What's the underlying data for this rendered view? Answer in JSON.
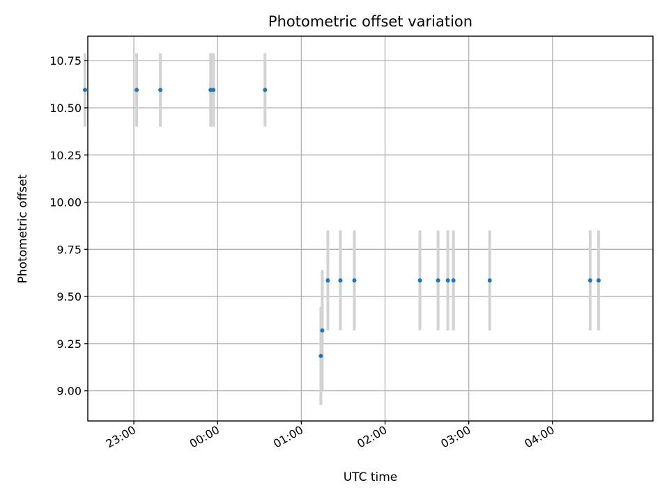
{
  "chart_data": {
    "type": "scatter",
    "title": "Photometric offset variation",
    "xlabel": "UTC time",
    "ylabel": "Photometric offset",
    "x_tick_labels": [
      "23:00",
      "00:00",
      "01:00",
      "02:00",
      "03:00",
      "04:00"
    ],
    "x_tick_times": [
      "23:00",
      "24:00",
      "25:00",
      "26:00",
      "27:00",
      "28:00"
    ],
    "xlim": [
      "22:27",
      "29:12"
    ],
    "y_tick_labels": [
      "9.00",
      "9.25",
      "9.50",
      "9.75",
      "10.00",
      "10.25",
      "10.50",
      "10.75"
    ],
    "y_tick_values": [
      9.0,
      9.25,
      9.5,
      9.75,
      10.0,
      10.25,
      10.5,
      10.75
    ],
    "ylim": [
      8.84,
      10.88
    ],
    "grid": true,
    "marker_color": "#1f77b4",
    "errorbar_color": "#d3d3d3",
    "series": [
      {
        "points": [
          {
            "t": "22:25",
            "y": 10.595,
            "err": 0.195
          },
          {
            "t": "23:02",
            "y": 10.595,
            "err": 0.195
          },
          {
            "t": "23:19",
            "y": 10.595,
            "err": 0.195
          },
          {
            "t": "23:55",
            "y": 10.595,
            "err": 0.195
          },
          {
            "t": "23:57",
            "y": 10.595,
            "err": 0.195
          },
          {
            "t": "24:34",
            "y": 10.595,
            "err": 0.195
          },
          {
            "t": "25:14",
            "y": 9.185,
            "err": 0.26
          },
          {
            "t": "25:15",
            "y": 9.32,
            "err": 0.32
          },
          {
            "t": "25:19",
            "y": 9.585,
            "err": 0.265
          },
          {
            "t": "25:28",
            "y": 9.585,
            "err": 0.265
          },
          {
            "t": "25:38",
            "y": 9.585,
            "err": 0.265
          },
          {
            "t": "26:25",
            "y": 9.585,
            "err": 0.265
          },
          {
            "t": "26:38",
            "y": 9.585,
            "err": 0.265
          },
          {
            "t": "26:45",
            "y": 9.585,
            "err": 0.265
          },
          {
            "t": "26:49",
            "y": 9.585,
            "err": 0.265
          },
          {
            "t": "27:15",
            "y": 9.585,
            "err": 0.265
          },
          {
            "t": "28:27",
            "y": 9.585,
            "err": 0.265
          },
          {
            "t": "28:33",
            "y": 9.585,
            "err": 0.265
          }
        ]
      }
    ]
  }
}
